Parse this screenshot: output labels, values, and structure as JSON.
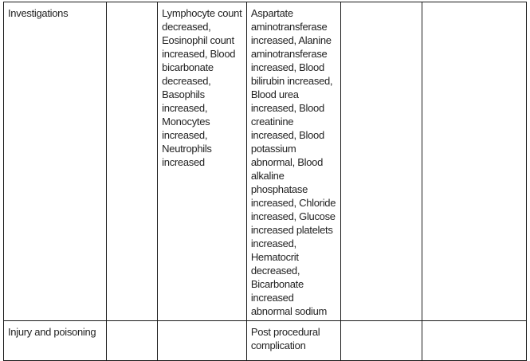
{
  "rows": [
    {
      "label": "Investigations",
      "cells": [
        "",
        "Lymphocyte count decreased, Eosinophil count increased, Blood bicarbonate decreased, Basophils increased, Monocytes increased, Neutrophils increased",
        "Aspartate aminotransferase increased, Alanine aminotransferase increased, Blood bilirubin increased, Blood urea increased, Blood creatinine increased, Blood potassium abnormal, Blood alkaline phosphatase increased, Chloride increased, Glucose increased platelets increased, Hematocrit decreased, Bicarbonate increased abnormal sodium",
        "",
        ""
      ]
    },
    {
      "label": "Injury and poisoning",
      "cells": [
        "",
        "",
        "Post procedural complication",
        "",
        ""
      ]
    }
  ]
}
